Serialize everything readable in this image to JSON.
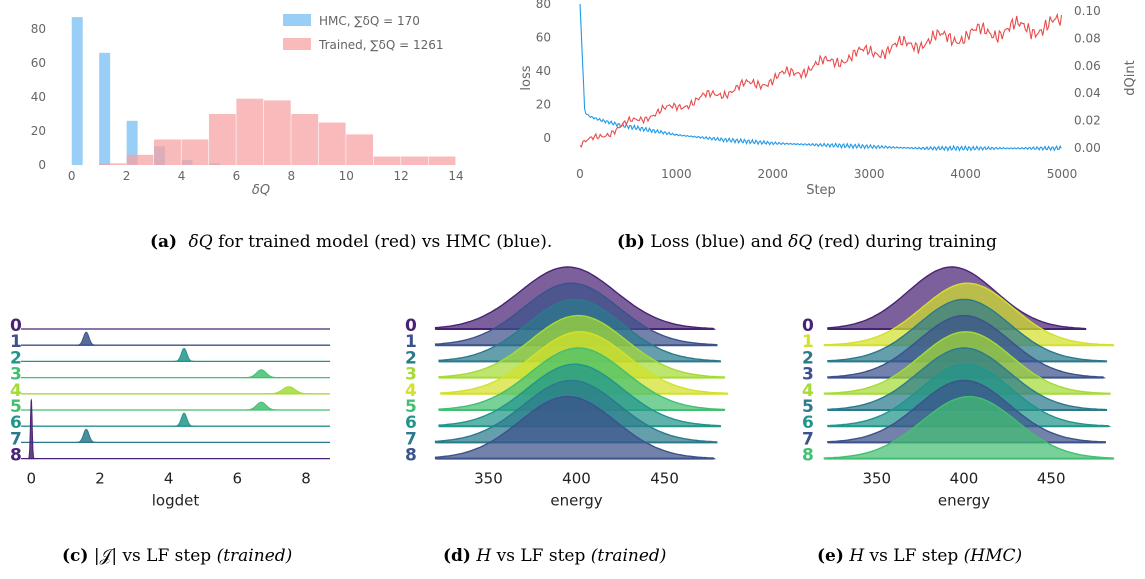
{
  "colors": {
    "blue": "#1f9ae8",
    "red": "#e84b4b",
    "hist_blue": "#8ec9f5",
    "hist_red": "#f5a3a3",
    "viridis": [
      "#482374",
      "#3b528b",
      "#2b7a8c",
      "#22958a",
      "#43bf71",
      "#a5db36",
      "#d3e12a"
    ]
  },
  "captions": {
    "a": {
      "tag": "(a)",
      "q": "δQ",
      "rest": " for trained model (red) vs HMC (blue)."
    },
    "b": {
      "tag": "(b)",
      "pre": " Loss (blue) and ",
      "q": "δQ",
      "rest": " (red) during training"
    },
    "c": {
      "tag": "(c)",
      "j": " |𝒥|",
      "mid": " vs LF step ",
      "it": "(trained)"
    },
    "d": {
      "tag": "(d)",
      "h": " H",
      "mid": " vs LF step ",
      "it": "(trained)"
    },
    "e": {
      "tag": "(e)",
      "h": " H",
      "mid": " vs LF step ",
      "it": "(HMC)"
    }
  },
  "chart_data": [
    {
      "id": "a",
      "type": "bar",
      "subtype": "histogram",
      "xlabel": "δQ",
      "xlim": [
        -0.5,
        14
      ],
      "ylim": [
        0,
        90
      ],
      "xticks": [
        0,
        2,
        4,
        6,
        8,
        10,
        12,
        14
      ],
      "yticks": [
        0,
        20,
        40,
        60,
        80
      ],
      "legend_position": "top-right",
      "series": [
        {
          "name": "HMC, ∑δQ =  170",
          "color": "#8ec9f5",
          "bins": [
            [
              0,
              0.4
            ],
            [
              1,
              1.4
            ],
            [
              2,
              2.4
            ],
            [
              3,
              3.4
            ],
            [
              4,
              4.4
            ],
            [
              5,
              5.4
            ]
          ],
          "values": [
            87,
            66,
            26,
            11,
            3,
            1
          ]
        },
        {
          "name": "Trained, ∑δQ =  1261",
          "color": "#f5a3a3",
          "bins": [
            [
              1,
              2
            ],
            [
              2,
              3
            ],
            [
              3,
              4
            ],
            [
              4,
              5
            ],
            [
              5,
              6
            ],
            [
              6,
              7
            ],
            [
              7,
              8
            ],
            [
              8,
              9
            ],
            [
              9,
              10
            ],
            [
              10,
              11
            ],
            [
              11,
              12
            ],
            [
              12,
              13
            ],
            [
              13,
              14
            ]
          ],
          "values": [
            1,
            6,
            15,
            15,
            30,
            39,
            38,
            30,
            25,
            18,
            5,
            5,
            5
          ]
        }
      ]
    },
    {
      "id": "b",
      "type": "line",
      "xlabel": "Step",
      "ylabel": "loss",
      "ylabel_right": "dQint",
      "xlim": [
        0,
        5000
      ],
      "ylim": [
        -10,
        80
      ],
      "ylim_right": [
        -0.005,
        0.105
      ],
      "xticks": [
        0,
        1000,
        2000,
        3000,
        4000,
        5000
      ],
      "yticks": [
        0,
        20,
        40,
        60,
        80
      ],
      "yticks_right": [
        "0.00",
        "0.02",
        "0.04",
        "0.06",
        "0.08",
        "0.10"
      ],
      "series": [
        {
          "name": "loss",
          "color": "#1f9ae8",
          "x": [
            0,
            50,
            100,
            200,
            400,
            600,
            800,
            1000,
            1500,
            2000,
            2500,
            3000,
            3500,
            4000,
            4500,
            5000
          ],
          "y": [
            80,
            15,
            13,
            11,
            8,
            6,
            4,
            2,
            -1,
            -3,
            -4,
            -5,
            -6,
            -6,
            -6,
            -6
          ]
        },
        {
          "name": "dQint",
          "axis": "right",
          "color": "#e84b4b",
          "x": [
            0,
            250,
            500,
            750,
            1000,
            1250,
            1500,
            1750,
            2000,
            2250,
            2500,
            2750,
            3000,
            3250,
            3500,
            3750,
            4000,
            4250,
            4500,
            4750,
            5000
          ],
          "y": [
            0.002,
            0.01,
            0.018,
            0.025,
            0.03,
            0.036,
            0.041,
            0.046,
            0.05,
            0.056,
            0.061,
            0.066,
            0.07,
            0.073,
            0.077,
            0.08,
            0.082,
            0.085,
            0.087,
            0.088,
            0.09
          ]
        }
      ]
    },
    {
      "id": "c",
      "type": "area",
      "subtype": "ridgeline",
      "xlabel": "logdet",
      "xlim": [
        -0.3,
        8.7
      ],
      "xticks": [
        0,
        2,
        4,
        6,
        8
      ],
      "rows": [
        {
          "label": "0",
          "color": "#482374",
          "center": null,
          "width": 0,
          "height": 0
        },
        {
          "label": "1",
          "color": "#3b528b",
          "center": 1.6,
          "width": 0.08,
          "height": 1
        },
        {
          "label": "2",
          "color": "#22958a",
          "center": 4.45,
          "width": 0.08,
          "height": 1
        },
        {
          "label": "3",
          "color": "#43bf71",
          "center": 6.7,
          "width": 0.14,
          "height": 0.6
        },
        {
          "label": "4",
          "color": "#a5db36",
          "center": 7.5,
          "width": 0.18,
          "height": 0.55
        },
        {
          "label": "5",
          "color": "#43bf71",
          "center": 6.7,
          "width": 0.14,
          "height": 0.6
        },
        {
          "label": "6",
          "color": "#22958a",
          "center": 4.45,
          "width": 0.08,
          "height": 1
        },
        {
          "label": "7",
          "color": "#2b7a8c",
          "center": 1.6,
          "width": 0.08,
          "height": 1
        },
        {
          "label": "8",
          "color": "#482374",
          "center": 0.0,
          "width": 0.025,
          "height": 4.5
        }
      ]
    },
    {
      "id": "d",
      "type": "area",
      "subtype": "ridgeline",
      "xlabel": "energy",
      "xlim": [
        310,
        490
      ],
      "xticks": [
        350,
        400,
        450
      ],
      "rows": [
        {
          "label": "0",
          "color": "#482374",
          "center": 395,
          "width": 27,
          "range": [
            320,
            478
          ]
        },
        {
          "label": "1",
          "color": "#3b528b",
          "center": 397,
          "width": 27,
          "range": [
            320,
            480
          ]
        },
        {
          "label": "2",
          "color": "#2b7a8c",
          "center": 399,
          "width": 27,
          "range": [
            322,
            482
          ]
        },
        {
          "label": "3",
          "color": "#a5db36",
          "center": 401,
          "width": 27,
          "range": [
            322,
            484
          ]
        },
        {
          "label": "4",
          "color": "#d3e12a",
          "center": 402,
          "width": 27,
          "range": [
            323,
            486
          ]
        },
        {
          "label": "5",
          "color": "#43bf71",
          "center": 401,
          "width": 27,
          "range": [
            322,
            484
          ]
        },
        {
          "label": "6",
          "color": "#22958a",
          "center": 399,
          "width": 27,
          "range": [
            322,
            482
          ]
        },
        {
          "label": "7",
          "color": "#2b7a8c",
          "center": 397,
          "width": 27,
          "range": [
            320,
            480
          ]
        },
        {
          "label": "8",
          "color": "#3b528b",
          "center": 395,
          "width": 27,
          "range": [
            320,
            478
          ]
        }
      ]
    },
    {
      "id": "e",
      "type": "area",
      "subtype": "ridgeline",
      "xlabel": "energy",
      "xlim": [
        310,
        490
      ],
      "xticks": [
        350,
        400,
        450
      ],
      "rows": [
        {
          "label": "0",
          "color": "#482374",
          "center": 393,
          "width": 25,
          "range": [
            322,
            470
          ]
        },
        {
          "label": "1",
          "color": "#d3e12a",
          "center": 402,
          "width": 26,
          "range": [
            320,
            486
          ]
        },
        {
          "label": "2",
          "color": "#2b7a8c",
          "center": 400,
          "width": 26,
          "range": [
            322,
            482
          ]
        },
        {
          "label": "3",
          "color": "#3b528b",
          "center": 400,
          "width": 26,
          "range": [
            322,
            480
          ]
        },
        {
          "label": "4",
          "color": "#a5db36",
          "center": 401,
          "width": 26,
          "range": [
            320,
            484
          ]
        },
        {
          "label": "5",
          "color": "#2b7a8c",
          "center": 400,
          "width": 26,
          "range": [
            322,
            482
          ]
        },
        {
          "label": "6",
          "color": "#22958a",
          "center": 401,
          "width": 26,
          "range": [
            322,
            483
          ]
        },
        {
          "label": "7",
          "color": "#3b528b",
          "center": 400,
          "width": 26,
          "range": [
            322,
            481
          ]
        },
        {
          "label": "8",
          "color": "#43bf71",
          "center": 403,
          "width": 27,
          "range": [
            320,
            486
          ]
        }
      ]
    }
  ]
}
